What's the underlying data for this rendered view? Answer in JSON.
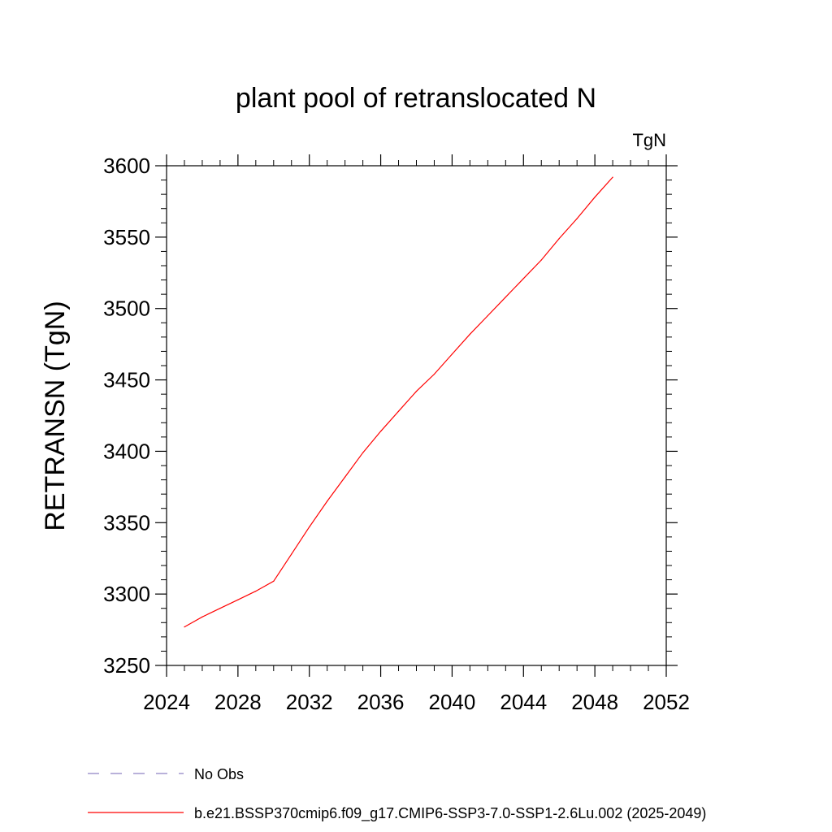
{
  "chart_data": {
    "type": "line",
    "title": "plant pool of retranslocated N",
    "ylabel": "RETRANSN  (TgN)",
    "units": "TgN",
    "xlabel": "",
    "xlim": [
      2024,
      2052
    ],
    "ylim": [
      3250,
      3600
    ],
    "x_ticks": [
      2024,
      2028,
      2032,
      2036,
      2040,
      2044,
      2048,
      2052
    ],
    "y_ticks": [
      3250,
      3300,
      3350,
      3400,
      3450,
      3500,
      3550,
      3600
    ],
    "grid": false,
    "legend_position": "bottom",
    "series": [
      {
        "name": "b.e21.BSSP370cmip6.f09_g17.CMIP6-SSP3-7.0-SSP1-2.6Lu.002 (2025-2049)",
        "color": "#ff0000",
        "style": "solid",
        "x": [
          2025,
          2026,
          2027,
          2028,
          2029,
          2030,
          2031,
          2032,
          2033,
          2034,
          2035,
          2036,
          2037,
          2038,
          2039,
          2040,
          2041,
          2042,
          2043,
          2044,
          2045,
          2046,
          2047,
          2048,
          2049
        ],
        "y": [
          3277,
          3284,
          3290,
          3296,
          3302,
          3309,
          3328,
          3347,
          3365,
          3382,
          3399,
          3414,
          3428,
          3442,
          3454,
          3468,
          3482,
          3495,
          3508,
          3521,
          3534,
          3549,
          3563,
          3578,
          3592
        ]
      },
      {
        "name": "No Obs",
        "color": "#8f82c4",
        "style": "dashed",
        "x": [],
        "y": []
      }
    ]
  }
}
